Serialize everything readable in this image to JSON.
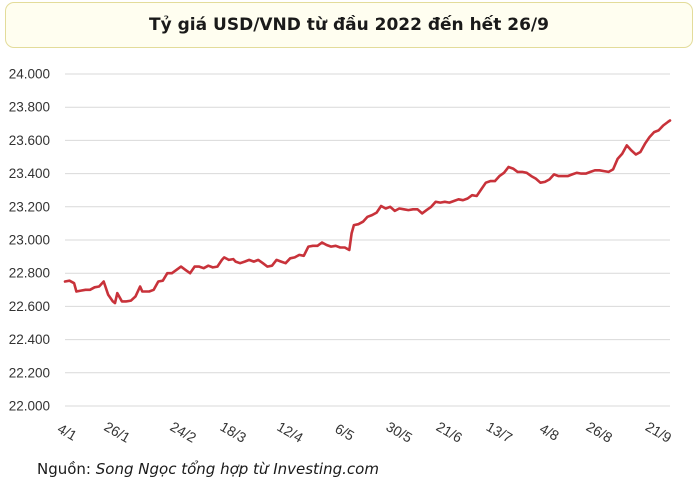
{
  "chart_data": {
    "type": "line",
    "title": "Tỷ giá USD/VND từ đầu 2022 đến hết 26/9",
    "ylim": [
      22000,
      24000
    ],
    "y_ticks": [
      "22.000",
      "22.200",
      "22.400",
      "22.600",
      "22.800",
      "23.000",
      "23.200",
      "23.400",
      "23.600",
      "23.800",
      "24.000"
    ],
    "y_tick_values": [
      22000,
      22200,
      22400,
      22600,
      22800,
      23000,
      23200,
      23400,
      23600,
      23800,
      24000
    ],
    "x_ticks": [
      "4/1",
      "26/1",
      "24/2",
      "18/3",
      "12/4",
      "6/5",
      "30/5",
      "21/6",
      "13/7",
      "4/8",
      "26/8",
      "21/9"
    ],
    "x_tick_days": [
      4,
      26,
      55,
      77,
      102,
      126,
      150,
      172,
      194,
      216,
      238,
      264
    ],
    "x_range_days": [
      3,
      269
    ],
    "line_color": "#c8323a",
    "grid": true,
    "series": [
      {
        "points": [
          [
            3,
            22750
          ],
          [
            5,
            22755
          ],
          [
            7,
            22740
          ],
          [
            8,
            22690
          ],
          [
            10,
            22695
          ],
          [
            12,
            22700
          ],
          [
            14,
            22700
          ],
          [
            16,
            22715
          ],
          [
            18,
            22720
          ],
          [
            20,
            22750
          ],
          [
            22,
            22670
          ],
          [
            24,
            22630
          ],
          [
            25,
            22620
          ],
          [
            26,
            22680
          ],
          [
            28,
            22630
          ],
          [
            30,
            22630
          ],
          [
            32,
            22635
          ],
          [
            34,
            22660
          ],
          [
            36,
            22720
          ],
          [
            37,
            22690
          ],
          [
            40,
            22690
          ],
          [
            42,
            22700
          ],
          [
            44,
            22750
          ],
          [
            46,
            22755
          ],
          [
            48,
            22800
          ],
          [
            50,
            22800
          ],
          [
            52,
            22820
          ],
          [
            54,
            22840
          ],
          [
            56,
            22820
          ],
          [
            58,
            22800
          ],
          [
            60,
            22840
          ],
          [
            62,
            22840
          ],
          [
            64,
            22830
          ],
          [
            66,
            22845
          ],
          [
            68,
            22835
          ],
          [
            70,
            22840
          ],
          [
            72,
            22880
          ],
          [
            73,
            22895
          ],
          [
            75,
            22880
          ],
          [
            77,
            22885
          ],
          [
            78,
            22870
          ],
          [
            80,
            22860
          ],
          [
            82,
            22870
          ],
          [
            84,
            22880
          ],
          [
            86,
            22870
          ],
          [
            88,
            22880
          ],
          [
            90,
            22860
          ],
          [
            92,
            22840
          ],
          [
            94,
            22845
          ],
          [
            96,
            22880
          ],
          [
            98,
            22870
          ],
          [
            100,
            22860
          ],
          [
            102,
            22890
          ],
          [
            104,
            22895
          ],
          [
            106,
            22910
          ],
          [
            108,
            22905
          ],
          [
            110,
            22960
          ],
          [
            112,
            22965
          ],
          [
            114,
            22965
          ],
          [
            116,
            22985
          ],
          [
            118,
            22970
          ],
          [
            120,
            22960
          ],
          [
            122,
            22965
          ],
          [
            124,
            22955
          ],
          [
            126,
            22955
          ],
          [
            128,
            22940
          ],
          [
            129,
            23040
          ],
          [
            130,
            23090
          ],
          [
            132,
            23095
          ],
          [
            134,
            23110
          ],
          [
            136,
            23140
          ],
          [
            138,
            23150
          ],
          [
            140,
            23165
          ],
          [
            142,
            23205
          ],
          [
            144,
            23190
          ],
          [
            146,
            23200
          ],
          [
            148,
            23175
          ],
          [
            150,
            23190
          ],
          [
            152,
            23185
          ],
          [
            154,
            23180
          ],
          [
            156,
            23185
          ],
          [
            158,
            23185
          ],
          [
            160,
            23160
          ],
          [
            162,
            23180
          ],
          [
            164,
            23200
          ],
          [
            166,
            23230
          ],
          [
            168,
            23225
          ],
          [
            170,
            23230
          ],
          [
            172,
            23225
          ],
          [
            174,
            23235
          ],
          [
            176,
            23245
          ],
          [
            178,
            23240
          ],
          [
            180,
            23250
          ],
          [
            182,
            23270
          ],
          [
            184,
            23265
          ],
          [
            186,
            23305
          ],
          [
            188,
            23345
          ],
          [
            190,
            23355
          ],
          [
            192,
            23355
          ],
          [
            194,
            23385
          ],
          [
            196,
            23405
          ],
          [
            198,
            23440
          ],
          [
            200,
            23430
          ],
          [
            202,
            23410
          ],
          [
            204,
            23410
          ],
          [
            206,
            23405
          ],
          [
            208,
            23385
          ],
          [
            210,
            23370
          ],
          [
            212,
            23345
          ],
          [
            214,
            23350
          ],
          [
            216,
            23365
          ],
          [
            218,
            23395
          ],
          [
            220,
            23385
          ],
          [
            222,
            23385
          ],
          [
            224,
            23385
          ],
          [
            226,
            23395
          ],
          [
            228,
            23405
          ],
          [
            230,
            23400
          ],
          [
            232,
            23400
          ],
          [
            234,
            23410
          ],
          [
            236,
            23420
          ],
          [
            238,
            23420
          ],
          [
            240,
            23415
          ],
          [
            242,
            23410
          ],
          [
            244,
            23425
          ],
          [
            246,
            23490
          ],
          [
            248,
            23520
          ],
          [
            250,
            23570
          ],
          [
            252,
            23540
          ],
          [
            254,
            23515
          ],
          [
            256,
            23530
          ],
          [
            258,
            23580
          ],
          [
            260,
            23620
          ],
          [
            262,
            23650
          ],
          [
            264,
            23660
          ],
          [
            266,
            23690
          ],
          [
            268,
            23710
          ],
          [
            269,
            23720
          ]
        ]
      }
    ]
  },
  "footer": {
    "source_label": "Nguồn:",
    "source_text": "Song Ngọc tổng hợp từ Investing.com"
  }
}
